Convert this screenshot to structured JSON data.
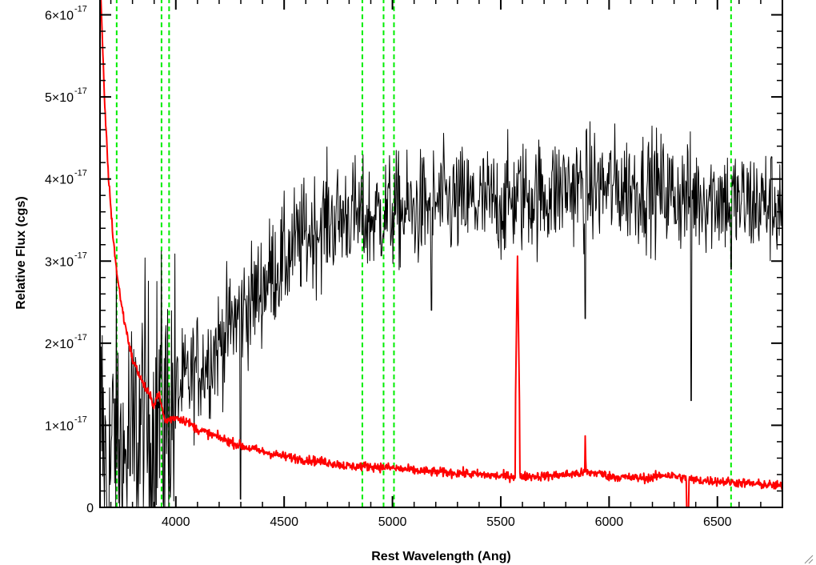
{
  "chart_data": {
    "type": "line",
    "title": "",
    "xlabel": "Rest Wavelength (Ang)",
    "ylabel": "Relative Flux (cgs)",
    "xlim": [
      3650,
      6800
    ],
    "ylim": [
      0,
      6.2e-17
    ],
    "x_ticks": [
      {
        "value": 4000,
        "label": "4000"
      },
      {
        "value": 4500,
        "label": "4500"
      },
      {
        "value": 5000,
        "label": "5000"
      },
      {
        "value": 5500,
        "label": "5500"
      },
      {
        "value": 6000,
        "label": "6000"
      },
      {
        "value": 6500,
        "label": "6500"
      }
    ],
    "y_ticks": [
      {
        "value": 0,
        "mantissa": "0",
        "exponent": ""
      },
      {
        "value": 1e-17,
        "mantissa": "1×10",
        "exponent": "-17"
      },
      {
        "value": 2e-17,
        "mantissa": "2×10",
        "exponent": "-17"
      },
      {
        "value": 3e-17,
        "mantissa": "3×10",
        "exponent": "-17"
      },
      {
        "value": 4e-17,
        "mantissa": "4×10",
        "exponent": "-17"
      },
      {
        "value": 5e-17,
        "mantissa": "5×10",
        "exponent": "-17"
      },
      {
        "value": 6e-17,
        "mantissa": "6×10",
        "exponent": "-17"
      }
    ],
    "vlines": [
      3727,
      3934,
      3969,
      4861,
      4959,
      5007,
      6563
    ],
    "series": [
      {
        "role": "spectrum",
        "color": "#000000",
        "x": [
          3660,
          3680,
          3700,
          3720,
          3740,
          3760,
          3780,
          3800,
          3820,
          3850,
          3880,
          3900,
          3920,
          3950,
          3980,
          4000,
          4050,
          4100,
          4150,
          4200,
          4250,
          4300,
          4350,
          4400,
          4450,
          4500,
          4550,
          4600,
          4650,
          4700,
          4750,
          4800,
          4850,
          4900,
          4950,
          5000,
          5100,
          5200,
          5300,
          5400,
          5500,
          5600,
          5700,
          5800,
          5900,
          6000,
          6100,
          6200,
          6300,
          6400,
          6500,
          6600,
          6700,
          6800
        ],
        "y": [
          1e-17,
          2e-18,
          5e-18,
          1e-17,
          6e-18,
          4e-18,
          8e-18,
          6e-18,
          9e-18,
          1e-17,
          9e-18,
          1.1e-17,
          1.2e-17,
          1.1e-17,
          1.2e-17,
          1.4e-17,
          1.5e-17,
          1.7e-17,
          1.8e-17,
          2e-17,
          2.2e-17,
          2.4e-17,
          2.5e-17,
          2.7e-17,
          2.9e-17,
          3e-17,
          3.2e-17,
          3.3e-17,
          3.4e-17,
          3.5e-17,
          3.5e-17,
          3.6e-17,
          3.5e-17,
          3.5e-17,
          3.6e-17,
          3.6e-17,
          3.6e-17,
          3.7e-17,
          3.7e-17,
          3.7e-17,
          3.7e-17,
          3.8e-17,
          3.8e-17,
          3.9e-17,
          3.9e-17,
          3.9e-17,
          3.9e-17,
          3.9e-17,
          3.8e-17,
          3.8e-17,
          3.8e-17,
          3.7e-17,
          3.7e-17,
          3.7e-17
        ],
        "noise_sigma": 5e-18,
        "absorption_features": [
          {
            "x": 4300,
            "y": 1e-18
          },
          {
            "x": 5890,
            "y": 2.3e-17
          },
          {
            "x": 6380,
            "y": 1.3e-17
          },
          {
            "x": 5180,
            "y": 2.4e-17
          },
          {
            "x": 6563,
            "y": 2.9e-17
          }
        ]
      },
      {
        "role": "error",
        "color": "#ff0000",
        "x": [
          3650,
          3670,
          3690,
          3710,
          3730,
          3760,
          3800,
          3850,
          3900,
          3920,
          3950,
          4000,
          4050,
          4100,
          4200,
          4300,
          4400,
          4500,
          4600,
          4700,
          4800,
          4900,
          5000,
          5100,
          5200,
          5300,
          5400,
          5500,
          5577,
          5600,
          5700,
          5800,
          5890,
          5950,
          6000,
          6100,
          6200,
          6250,
          6300,
          6360,
          6400,
          6500,
          6600,
          6700,
          6800
        ],
        "y": [
          6.5e-17,
          5e-17,
          4e-17,
          3.3e-17,
          2.8e-17,
          2.3e-17,
          1.8e-17,
          1.5e-17,
          1.25e-17,
          1.4e-17,
          1.05e-17,
          1.1e-17,
          1.05e-17,
          9.5e-18,
          8.5e-18,
          7.5e-18,
          6.8e-18,
          6.2e-18,
          5.8e-18,
          5.5e-18,
          5e-18,
          5e-18,
          4.8e-18,
          4.5e-18,
          4.3e-18,
          4.2e-18,
          4e-18,
          3.8e-18,
          3.8e-18,
          3.8e-18,
          3.8e-18,
          4e-18,
          4.2e-18,
          4.2e-18,
          3.8e-18,
          3.6e-18,
          3.6e-18,
          4e-18,
          3.8e-18,
          3.5e-18,
          3.3e-18,
          3.2e-18,
          3e-18,
          2.8e-18,
          2.6e-18
        ],
        "noise_sigma": 4e-19,
        "emission_features": [
          {
            "x": 5577,
            "y": 3.1e-17
          },
          {
            "x": 5890,
            "y": 9.5e-18
          },
          {
            "x": 6300,
            "y": 6e-18
          }
        ],
        "dip_features": [
          {
            "x": 6363,
            "y": 0.0
          }
        ]
      }
    ],
    "grid": false,
    "legend": "none"
  }
}
